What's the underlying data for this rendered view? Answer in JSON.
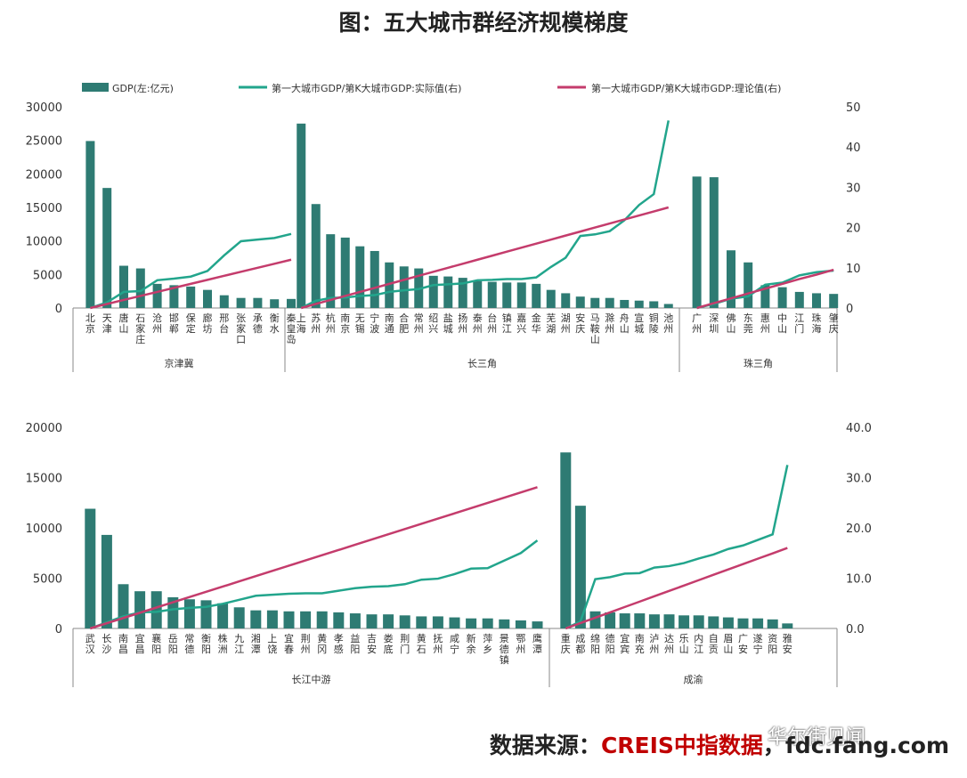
{
  "title": "图：五大城市群经济规模梯度",
  "legend": {
    "bar": "GDP(左:亿元)",
    "actual": "第一大城市GDP/第K大城市GDP:实际值(右)",
    "theory": "第一大城市GDP/第K大城市GDP:理论值(右)"
  },
  "source": {
    "label": "数据来源：",
    "brand": "CREIS中指数据",
    "site": "，fdc.fang.com"
  },
  "watermark": "华尔街见闻",
  "colors": {
    "bar": "#2e7b73",
    "actual": "#22a58c",
    "theory": "#c43c6c",
    "axis": "#888888",
    "text": "#333333"
  },
  "chart_data": [
    {
      "type": "bar+line",
      "name": "top",
      "y_left": {
        "min": 0,
        "max": 30000,
        "ticks": [
          "0",
          "5000",
          "10000",
          "15000",
          "20000",
          "25000",
          "30000"
        ]
      },
      "y_right": {
        "min": 0,
        "max": 50,
        "ticks": [
          "0",
          "10",
          "20",
          "30",
          "40",
          "50"
        ]
      },
      "groups": [
        {
          "name": "京津冀",
          "categories": [
            "北京",
            "天津",
            "唐山",
            "石家庄",
            "沧州",
            "邯郸",
            "保定",
            "廊坊",
            "邢台",
            "张家口",
            "承德",
            "衡水",
            "秦皇岛"
          ],
          "gdp": [
            24900,
            17900,
            6300,
            5900,
            3600,
            3400,
            3200,
            2700,
            1900,
            1500,
            1500,
            1300,
            1350
          ],
          "actual": [
            0,
            1.4,
            4.0,
            4.2,
            6.9,
            7.3,
            7.8,
            9.2,
            13.1,
            16.6,
            17.0,
            17.4,
            18.4
          ],
          "theory": [
            0,
            1,
            2,
            3,
            4,
            5,
            6,
            7,
            8,
            9,
            10,
            11,
            12
          ]
        },
        {
          "name": "长三角",
          "categories": [
            "上海",
            "苏州",
            "杭州",
            "南京",
            "无锡",
            "宁波",
            "南通",
            "合肥",
            "常州",
            "绍兴",
            "盐城",
            "扬州",
            "泰州",
            "台州",
            "镇江",
            "嘉兴",
            "金华",
            "芜湖",
            "湖州",
            "安庆",
            "马鞍山",
            "滁州",
            "舟山",
            "宣城",
            "铜陵",
            "池州"
          ],
          "gdp": [
            27500,
            15500,
            11000,
            10500,
            9200,
            8500,
            6800,
            6200,
            5900,
            4800,
            4700,
            4500,
            4000,
            3900,
            3800,
            3800,
            3600,
            2700,
            2200,
            1700,
            1500,
            1500,
            1200,
            1100,
            1000,
            600
          ],
          "actual": [
            0,
            1.8,
            2.5,
            2.6,
            3.0,
            3.2,
            4.0,
            4.4,
            4.7,
            5.7,
            5.9,
            6.1,
            6.9,
            7.0,
            7.2,
            7.2,
            7.6,
            10.2,
            12.5,
            17.9,
            18.3,
            19.1,
            21.8,
            25.6,
            28.3,
            46.6
          ],
          "theory": [
            0,
            1,
            2,
            3,
            4,
            5,
            6,
            7,
            8,
            9,
            10,
            11,
            12,
            13,
            14,
            15,
            16,
            17,
            18,
            19,
            20,
            21,
            22,
            23,
            24,
            25
          ]
        },
        {
          "name": "珠三角",
          "categories": [
            "广州",
            "深圳",
            "佛山",
            "东莞",
            "惠州",
            "中山",
            "江门",
            "珠海",
            "肇庆"
          ],
          "gdp": [
            19600,
            19500,
            8600,
            6800,
            3400,
            3100,
            2400,
            2200,
            2100
          ],
          "actual": [
            0,
            1,
            2.3,
            2.9,
            5.8,
            6.3,
            8.1,
            8.9,
            9.3
          ],
          "theory": [
            0,
            1.2,
            2.4,
            3.6,
            4.8,
            6.0,
            7.2,
            8.3,
            9.5
          ]
        }
      ]
    },
    {
      "type": "bar+line",
      "name": "bottom",
      "y_left": {
        "min": 0,
        "max": 20000,
        "ticks": [
          "0",
          "5000",
          "10000",
          "15000",
          "20000"
        ]
      },
      "y_right": {
        "min": 0,
        "max": 40,
        "ticks": [
          "0.0",
          "10.0",
          "20.0",
          "30.0",
          "40.0"
        ]
      },
      "groups": [
        {
          "name": "长江中游",
          "categories": [
            "武汉",
            "长沙",
            "南昌",
            "宜昌",
            "襄阳",
            "岳阳",
            "常德",
            "衡阳",
            "株洲",
            "九江",
            "湘潭",
            "上饶",
            "宜春",
            "荆州",
            "黄冈",
            "孝感",
            "益阳",
            "吉安",
            "娄底",
            "荆门",
            "黄石",
            "抚州",
            "咸宁",
            "新余",
            "萍乡",
            "景德镇",
            "鄂州",
            "鹰潭"
          ],
          "gdp": [
            11900,
            9300,
            4400,
            3700,
            3700,
            3100,
            2900,
            2800,
            2500,
            2100,
            1800,
            1800,
            1700,
            1700,
            1700,
            1600,
            1500,
            1400,
            1400,
            1300,
            1200,
            1200,
            1100,
            1000,
            1000,
            900,
            800,
            700
          ],
          "actual": [
            0,
            1.2,
            2.4,
            3.2,
            3.3,
            3.8,
            4.1,
            4.3,
            4.9,
            5.7,
            6.5,
            6.7,
            6.9,
            7.0,
            7.0,
            7.5,
            8.0,
            8.3,
            8.4,
            8.8,
            9.7,
            9.9,
            10.8,
            11.9,
            12.0,
            13.5,
            15.0,
            17.5
          ],
          "theory": [
            0,
            1.04,
            2.08,
            3.12,
            4.16,
            5.2,
            6.24,
            7.28,
            8.32,
            9.36,
            10.4,
            11.44,
            12.48,
            13.52,
            14.56,
            15.6,
            16.64,
            17.68,
            18.72,
            19.76,
            20.8,
            21.84,
            22.88,
            23.92,
            24.96,
            26.0,
            27.04,
            28.08
          ]
        },
        {
          "name": "成渝",
          "categories": [
            "重庆",
            "成都",
            "绵阳",
            "德阳",
            "宜宾",
            "南充",
            "泸州",
            "达州",
            "乐山",
            "内江",
            "自贡",
            "眉山",
            "广安",
            "遂宁",
            "资阳",
            "雅安"
          ],
          "gdp": [
            17500,
            12200,
            1700,
            1600,
            1500,
            1500,
            1400,
            1400,
            1300,
            1300,
            1200,
            1100,
            1000,
            1000,
            900,
            500
          ],
          "actual": [
            0,
            1.4,
            9.8,
            10.2,
            10.9,
            11.0,
            12.1,
            12.4,
            13.0,
            13.9,
            14.7,
            15.8,
            16.5,
            17.6,
            18.7,
            32.5
          ],
          "theory": [
            0,
            1.07,
            2.13,
            3.2,
            4.27,
            5.33,
            6.4,
            7.47,
            8.53,
            9.6,
            10.67,
            11.73,
            12.8,
            13.87,
            14.93,
            16.0
          ]
        }
      ]
    }
  ]
}
